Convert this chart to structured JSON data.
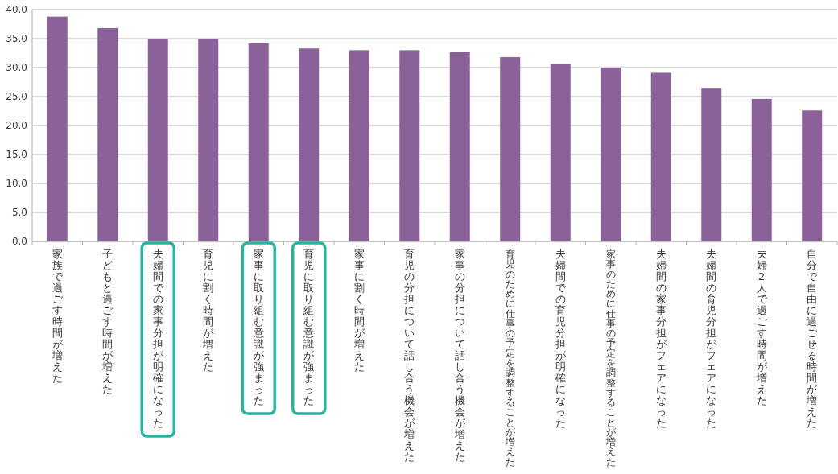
{
  "chart_data": {
    "type": "bar",
    "categories": [
      "家族で過ごす時間が増えた",
      "子どもと過ごす時間が増えた",
      "夫婦間での家事分担が明確になった",
      "育児に割く時間が増えた",
      "家事に取り組む意識が強まった",
      "育児に取り組む意識が強まった",
      "家事に割く時間が増えた",
      "育児の分担について話し合う機会が増えた",
      "家事の分担について話し合う機会が増えた",
      "育児のために仕事の予定を調整することが増えた",
      "夫婦間での育児分担が明確になった",
      "家事のために仕事の予定を調整することが増えた",
      "夫婦間の家事分担がフェアになった",
      "夫婦間の育児分担がフェアになった",
      "夫婦2人で過ごす時間が増えた",
      "自分で自由に過ごせる時間が増えた"
    ],
    "values": [
      38.8,
      36.8,
      35.0,
      35.0,
      34.2,
      33.3,
      33.0,
      33.0,
      32.7,
      31.8,
      30.6,
      30.0,
      29.1,
      26.5,
      24.6,
      22.6
    ],
    "color": "#8b6199",
    "ylim": [
      0,
      40
    ],
    "yticks": [
      {
        "value": 0,
        "label": "0.0"
      },
      {
        "value": 5,
        "label": "5.0"
      },
      {
        "value": 10,
        "label": "10.0"
      },
      {
        "value": 15,
        "label": "15.0"
      },
      {
        "value": 20,
        "label": "20.0"
      },
      {
        "value": 25,
        "label": "25.0"
      },
      {
        "value": 30,
        "label": "30.0"
      },
      {
        "value": 35,
        "label": "35.0"
      },
      {
        "value": 40,
        "label": "40.0"
      }
    ],
    "grid": "y"
  }
}
